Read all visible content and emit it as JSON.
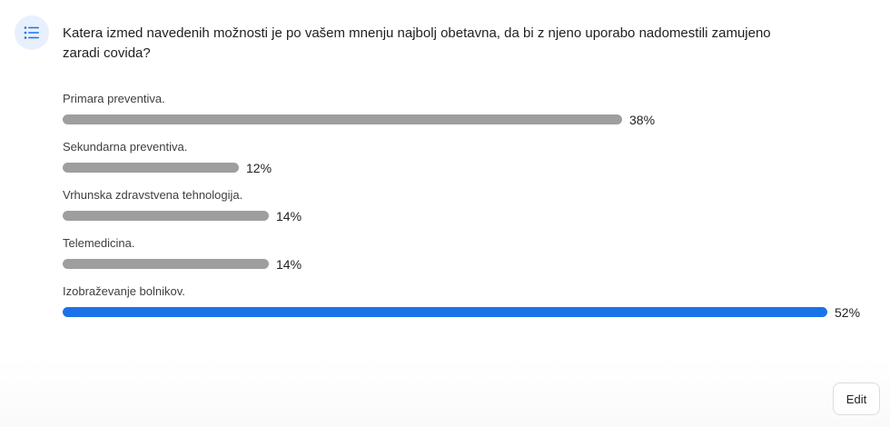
{
  "poll": {
    "type_icon": "list-icon",
    "question": "Katera izmed navedenih možnosti je po vašem mnenju najbolj obetavna, da bi z njeno uporabo nadomestili zamujeno zaradi covida?",
    "accent_color": "#1a73e8",
    "bar_color": "#9e9e9e",
    "options": [
      {
        "label": "Primara preventiva.",
        "percent_text": "38%",
        "percent": 38,
        "winner": false
      },
      {
        "label": "Sekundarna preventiva.",
        "percent_text": "12%",
        "percent": 12,
        "winner": false
      },
      {
        "label": "Vrhunska zdravstvena tehnologija.",
        "percent_text": "14%",
        "percent": 14,
        "winner": false
      },
      {
        "label": "Telemedicina.",
        "percent_text": "14%",
        "percent": 14,
        "winner": false
      },
      {
        "label": "Izobraževanje bolnikov.",
        "percent_text": "52%",
        "percent": 52,
        "winner": true
      }
    ]
  },
  "actions": {
    "edit_label": "Edit"
  }
}
